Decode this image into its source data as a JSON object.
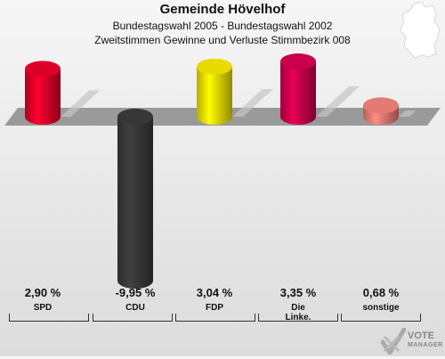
{
  "header": {
    "title": "Gemeinde Hövelhof",
    "subtitle1": "Bundestagswahl 2005 - Bundestagswahl 2002",
    "subtitle2": "Zweitstimmen Gewinne und Verluste Stimmbezirk 008"
  },
  "chart_data": {
    "type": "bar",
    "categories": [
      "SPD",
      "CDU",
      "FDP",
      "Die Linke.",
      "sonstige"
    ],
    "values": [
      2.9,
      -9.95,
      3.04,
      3.35,
      0.68
    ],
    "value_labels": [
      "2,90 %",
      "-9,95 %",
      "3,04 %",
      "3,35 %",
      "0,68 %"
    ],
    "colors": [
      "#e8002a",
      "#3a3a3a",
      "#f5e600",
      "#d4004f",
      "#f08078"
    ]
  },
  "logo": {
    "line1": "VOTE",
    "line2": "MANAGER"
  }
}
